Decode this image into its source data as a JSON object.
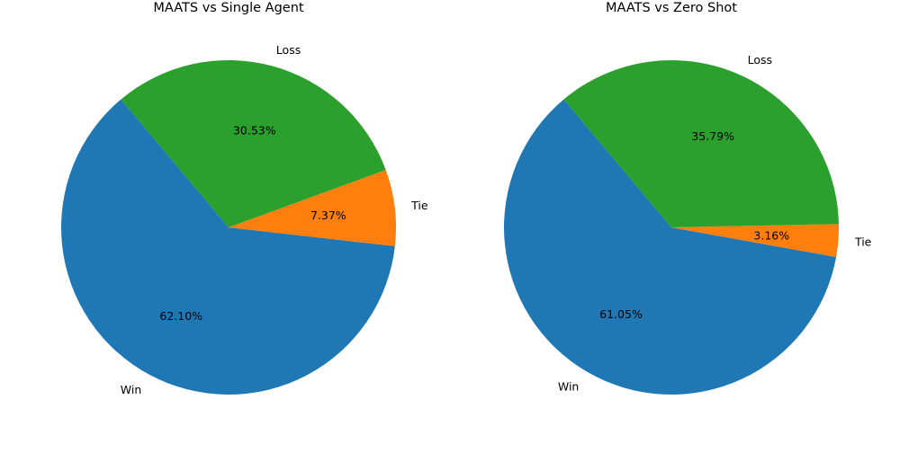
{
  "colors": {
    "Win": "#1f77b4",
    "Tie": "#ff7f0e",
    "Loss": "#2ca02c",
    "background": "#ffffff"
  },
  "chart_data": [
    {
      "type": "pie",
      "title": "MAATS vs Single Agent",
      "labels": [
        "Win",
        "Tie",
        "Loss"
      ],
      "values": [
        62.1,
        7.37,
        30.53
      ],
      "value_labels": [
        "62.10%",
        "7.37%",
        "30.53%"
      ],
      "start_angle_deg": 130,
      "counterclockwise": true
    },
    {
      "type": "pie",
      "title": "MAATS vs Zero Shot",
      "labels": [
        "Win",
        "Tie",
        "Loss"
      ],
      "values": [
        61.05,
        3.16,
        35.79
      ],
      "value_labels": [
        "61.05%",
        "3.16%",
        "35.79%"
      ],
      "start_angle_deg": 130,
      "counterclockwise": true
    }
  ]
}
